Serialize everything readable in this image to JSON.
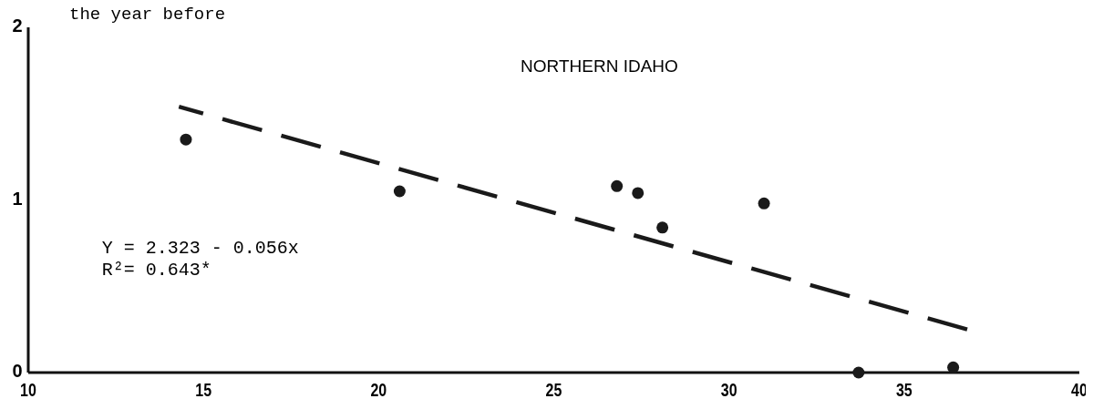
{
  "chart_data": {
    "type": "scatter",
    "title": "NORTHERN IDAHO",
    "ylabel": "the year before",
    "series": [
      {
        "color": "#1a1a1a",
        "marker": "circle",
        "x": [
          14.5,
          20.6,
          26.8,
          27.4,
          28.1,
          31.0,
          33.7,
          36.4
        ],
        "values": [
          1.35,
          1.05,
          1.08,
          1.04,
          0.84,
          0.98,
          0,
          0.03
        ]
      },
      {
        "type": "line",
        "color": "#1a1a1a",
        "line_style": "dashed",
        "x": [
          14.3,
          36.8
        ],
        "values": [
          1.54,
          0.25
        ]
      }
    ],
    "xlim": [
      10,
      40
    ],
    "xticks": [
      10,
      15,
      20,
      25,
      30,
      35,
      40
    ],
    "ylim": [
      0,
      2
    ],
    "yticks": [
      0,
      1,
      2
    ],
    "grid": false,
    "annotations": [
      "Y = 2.323 - 0.056x",
      "R²= 0.643*"
    ]
  }
}
